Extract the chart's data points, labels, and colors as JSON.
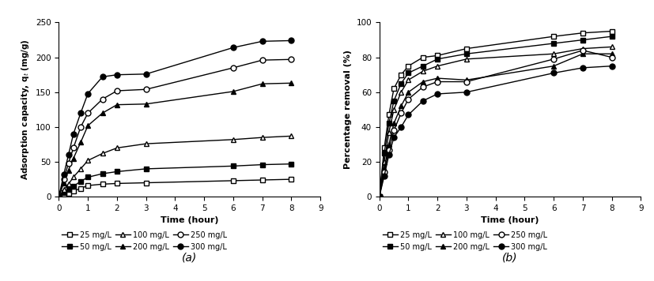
{
  "time_a": [
    0,
    0.17,
    0.33,
    0.5,
    0.75,
    1.0,
    1.5,
    2.0,
    3.0,
    6.0,
    7.0,
    8.0
  ],
  "series_a": {
    "25 mg/L": [
      0,
      3,
      5,
      8,
      12,
      16,
      18,
      19,
      20,
      23,
      24,
      25
    ],
    "50 mg/L": [
      0,
      6,
      10,
      15,
      22,
      28,
      33,
      36,
      40,
      44,
      46,
      47
    ],
    "100 mg/L": [
      0,
      10,
      18,
      28,
      40,
      52,
      62,
      70,
      76,
      82,
      85,
      87
    ],
    "200 mg/L": [
      0,
      20,
      38,
      55,
      78,
      102,
      120,
      132,
      133,
      151,
      162,
      163
    ],
    "250 mg/L": [
      0,
      25,
      48,
      70,
      100,
      120,
      140,
      152,
      154,
      185,
      196,
      197
    ],
    "300 mg/L": [
      0,
      32,
      60,
      90,
      120,
      148,
      172,
      175,
      176,
      214,
      223,
      224
    ]
  },
  "time_b": [
    0,
    0.17,
    0.33,
    0.5,
    0.75,
    1.0,
    1.5,
    2.0,
    3.0,
    6.0,
    7.0,
    8.0
  ],
  "series_b": {
    "25 mg/L": [
      0,
      28,
      47,
      62,
      70,
      75,
      80,
      81,
      85,
      92,
      94,
      95
    ],
    "50 mg/L": [
      0,
      25,
      42,
      55,
      65,
      71,
      75,
      79,
      82,
      88,
      90,
      92
    ],
    "100 mg/L": [
      0,
      20,
      37,
      50,
      60,
      67,
      72,
      75,
      79,
      82,
      85,
      86
    ],
    "200 mg/L": [
      0,
      16,
      30,
      42,
      52,
      60,
      66,
      68,
      67,
      75,
      82,
      82
    ],
    "250 mg/L": [
      0,
      14,
      27,
      38,
      48,
      56,
      63,
      66,
      66,
      79,
      84,
      80
    ],
    "300 mg/L": [
      0,
      12,
      24,
      34,
      40,
      47,
      55,
      59,
      60,
      71,
      74,
      75
    ]
  },
  "labels": [
    "25 mg/L",
    "50 mg/L",
    "100 mg/L",
    "200 mg/L",
    "250 mg/L",
    "300 mg/L"
  ],
  "ylabel_a": "Adsorption capacity, q$_t$ (mg/g)",
  "ylabel_b": "Percentage removal (%)",
  "xlabel": "Time (hour)",
  "ylim_a": [
    0,
    250
  ],
  "ylim_b": [
    0,
    100
  ],
  "xlim": [
    0,
    9
  ],
  "xticks": [
    0,
    1,
    2,
    3,
    4,
    5,
    6,
    7,
    8,
    9
  ],
  "yticks_a": [
    0,
    50,
    100,
    150,
    200,
    250
  ],
  "yticks_b": [
    0,
    20,
    40,
    60,
    80,
    100
  ],
  "label_a": "(a)",
  "label_b": "(b)",
  "figsize": [
    8.27,
    3.56
  ],
  "dpi": 100
}
